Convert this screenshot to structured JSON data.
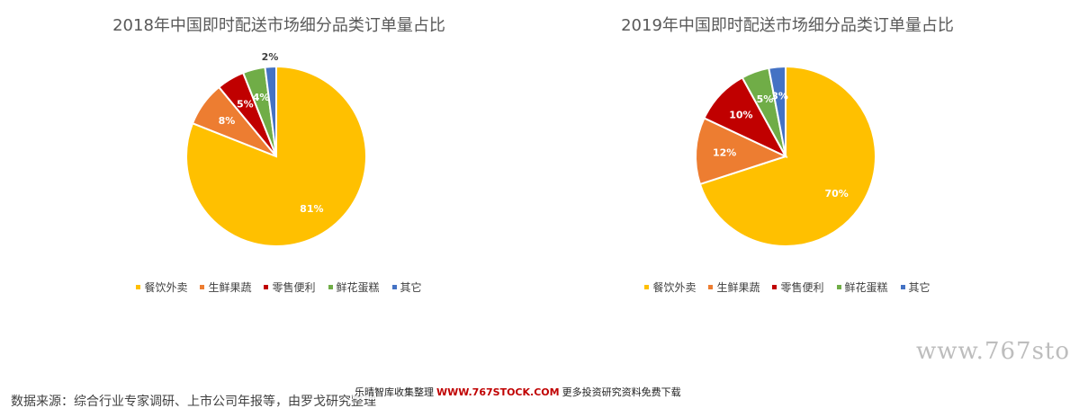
{
  "chart_data": [
    {
      "type": "pie",
      "title": "2018年中国即时配送市场细分品类订单量占比",
      "categories": [
        "餐饮外卖",
        "生鲜果蔬",
        "零售便利",
        "鲜花蛋糕",
        "其它"
      ],
      "values": [
        81,
        8,
        5,
        4,
        2
      ],
      "labels": [
        "81%",
        "8%",
        "5%",
        "4%",
        "2%"
      ],
      "legend_position": "bottom"
    },
    {
      "type": "pie",
      "title": "2019年中国即时配送市场细分品类订单量占比",
      "categories": [
        "餐饮外卖",
        "生鲜果蔬",
        "零售便利",
        "鲜花蛋糕",
        "其它"
      ],
      "values": [
        70,
        12,
        10,
        5,
        3
      ],
      "labels": [
        "70%",
        "12%",
        "10%",
        "5%",
        "3%"
      ],
      "legend_position": "bottom"
    }
  ],
  "colors": [
    "#FFC000",
    "#ED7D31",
    "#C00000",
    "#70AD47",
    "#4472C4"
  ],
  "source": "数据来源：综合行业专家调研、上市公司年报等，由罗戈研究整理",
  "banner": {
    "prefix": "乐晴智库收集整理",
    "url": "WWW.767STOCK.COM",
    "suffix": "更多投资研究资料免费下载"
  },
  "watermark": "www.767sto"
}
